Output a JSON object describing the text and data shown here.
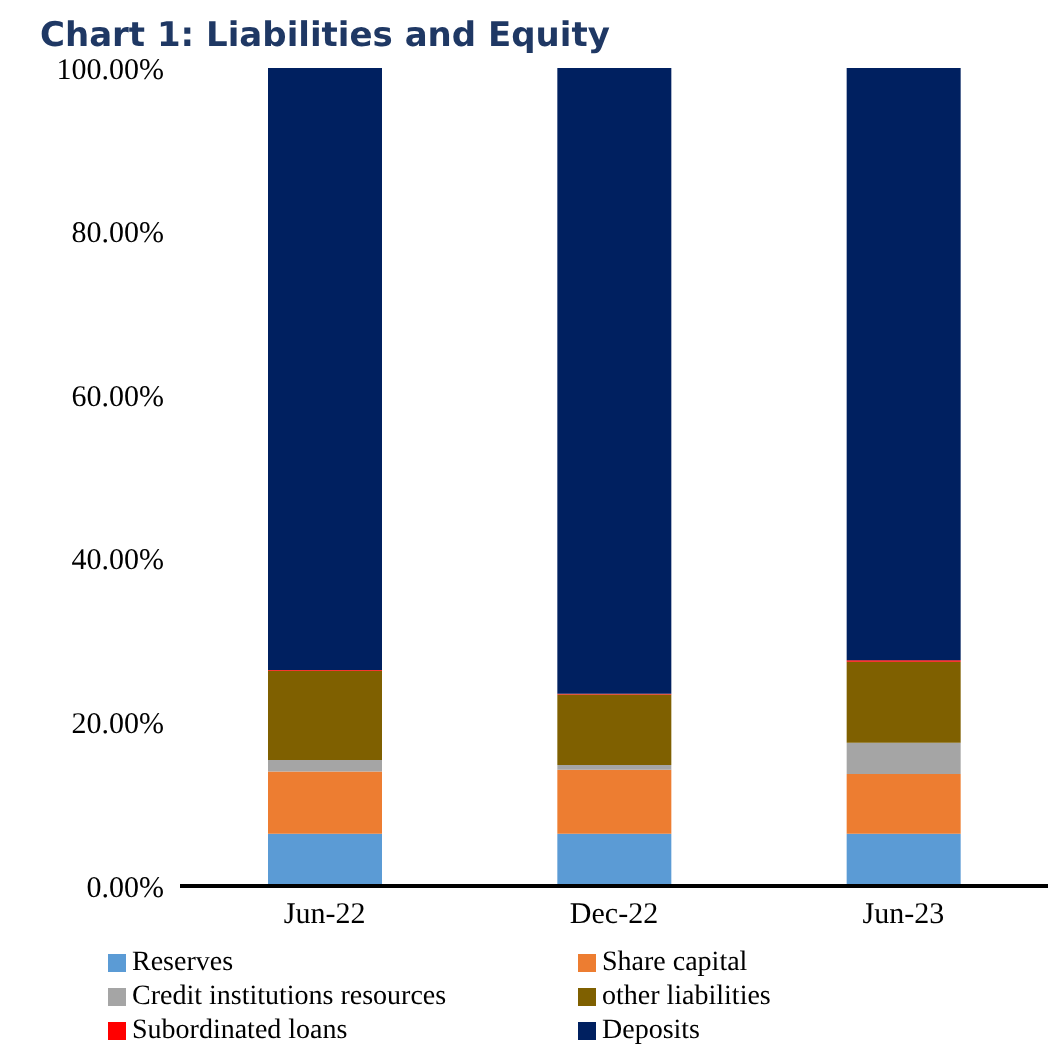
{
  "chart_data": {
    "type": "bar",
    "title": "Chart 1: Liabilities and Equity",
    "stacked": true,
    "categories": [
      "Jun-22",
      "Dec-22",
      "Jun-23"
    ],
    "series": [
      {
        "name": "Reserves",
        "color": "#5b9bd5",
        "values": [
          6.4,
          6.4,
          6.4
        ]
      },
      {
        "name": "Share capital",
        "color": "#ed7d31",
        "values": [
          7.6,
          7.8,
          7.3
        ]
      },
      {
        "name": "Credit institutions resources",
        "color": "#a5a5a5",
        "values": [
          1.4,
          0.6,
          3.8
        ]
      },
      {
        "name": "other liabilities",
        "color": "#7f6000",
        "values": [
          10.9,
          8.6,
          9.9
        ]
      },
      {
        "name": "Subordinated loans",
        "color": "#ff0000",
        "values": [
          0.1,
          0.1,
          0.2
        ]
      },
      {
        "name": "Deposits",
        "color": "#002060",
        "values": [
          73.6,
          76.5,
          72.4
        ]
      }
    ],
    "ylim": [
      0,
      100
    ],
    "yticks": [
      {
        "value": 0,
        "label": "0.00%"
      },
      {
        "value": 20,
        "label": "20.00%"
      },
      {
        "value": 40,
        "label": "40.00%"
      },
      {
        "value": 60,
        "label": "60.00%"
      },
      {
        "value": 80,
        "label": "80.00%"
      },
      {
        "value": 100,
        "label": "100.00%"
      }
    ],
    "grid": false,
    "legend": "bottom"
  }
}
